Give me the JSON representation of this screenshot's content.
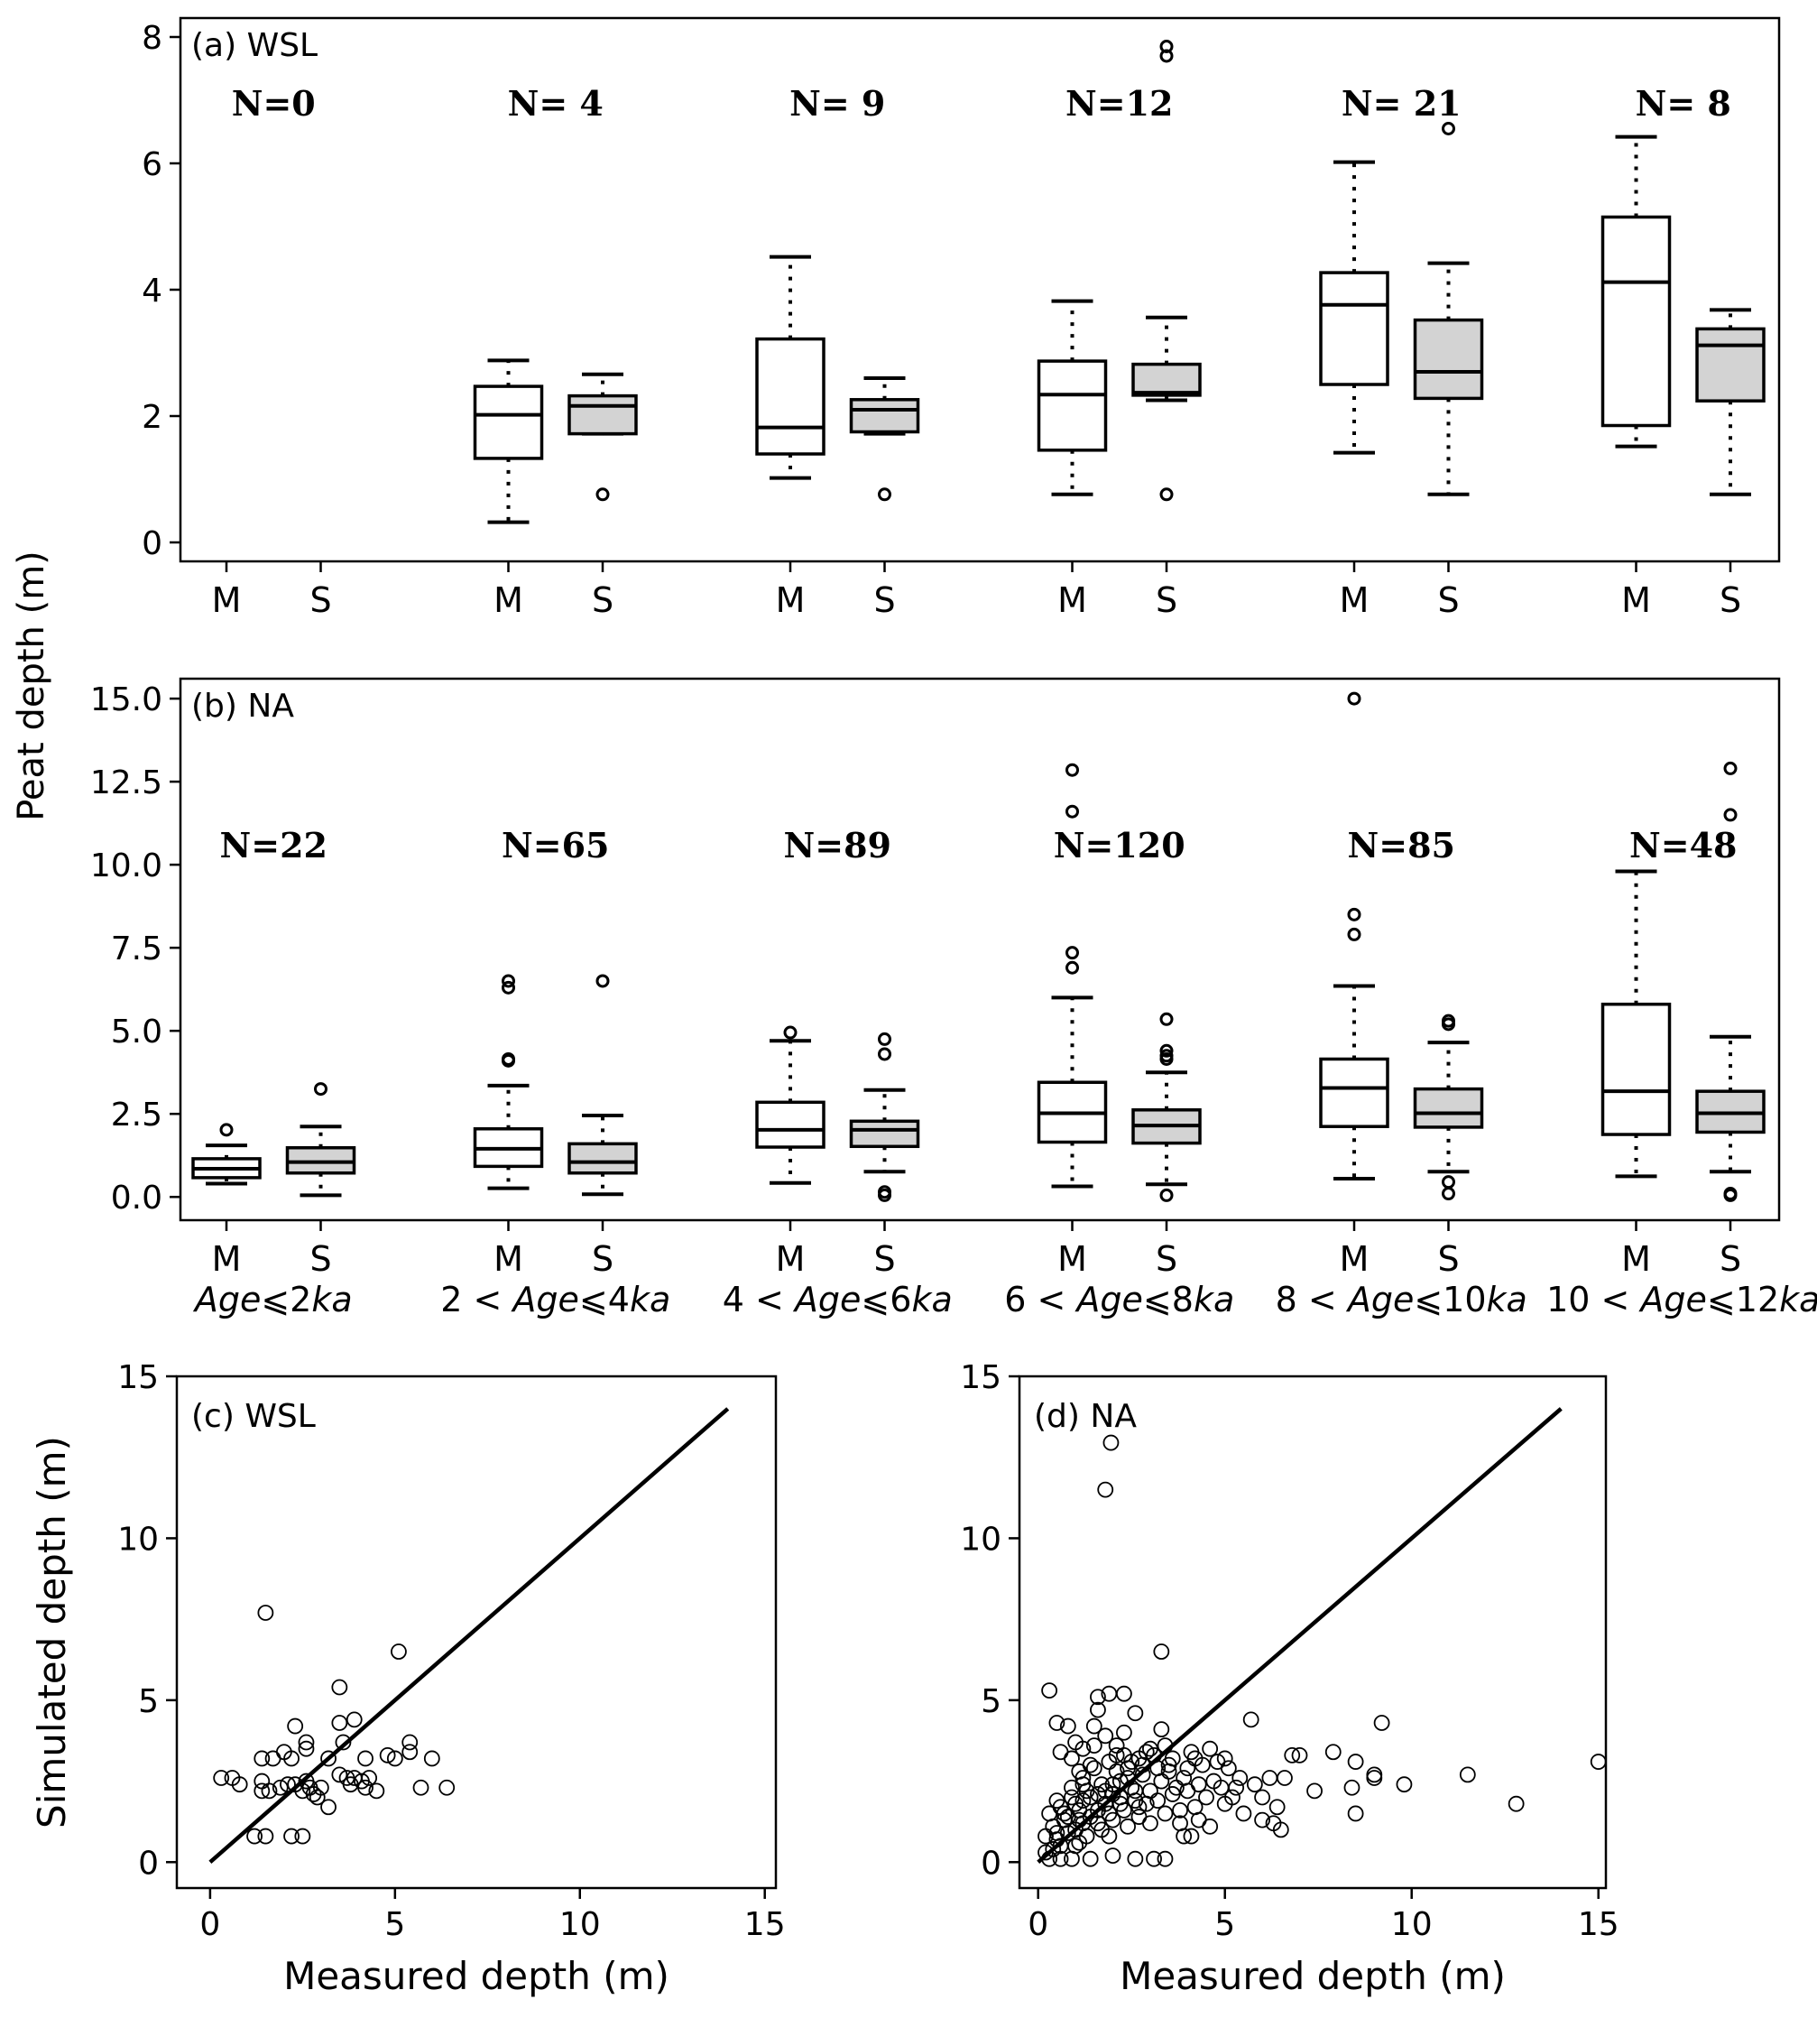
{
  "figure": {
    "ylabel_shared": "Peat depth (m)"
  },
  "chart_data": [
    {
      "type": "box",
      "panel_label": "(a) WSL",
      "ylim": [
        -0.3,
        8.3
      ],
      "yticks": [
        "0",
        "2",
        "4",
        "6",
        "8"
      ],
      "ytick_values": [
        0,
        2,
        4,
        6,
        8
      ],
      "box_labels": [
        "M",
        "S"
      ],
      "groups": [
        {
          "n_label": "N=0",
          "boxes": []
        },
        {
          "n_label": "N= 4",
          "boxes": [
            {
              "label": "M",
              "whislo": 0.32,
              "q1": 1.33,
              "med": 2.02,
              "q3": 2.47,
              "whishi": 2.88,
              "fliers": []
            },
            {
              "label": "S",
              "whislo": 1.72,
              "q1": 1.72,
              "med": 2.16,
              "q3": 2.32,
              "whishi": 2.66,
              "fliers": [
                0.76
              ]
            }
          ]
        },
        {
          "n_label": "N= 9",
          "boxes": [
            {
              "label": "M",
              "whislo": 1.02,
              "q1": 1.4,
              "med": 1.82,
              "q3": 3.22,
              "whishi": 4.52,
              "fliers": []
            },
            {
              "label": "S",
              "whislo": 1.72,
              "q1": 1.75,
              "med": 2.1,
              "q3": 2.26,
              "whishi": 2.6,
              "fliers": [
                0.76
              ]
            }
          ]
        },
        {
          "n_label": "N=12",
          "boxes": [
            {
              "label": "M",
              "whislo": 0.76,
              "q1": 1.46,
              "med": 2.34,
              "q3": 2.87,
              "whishi": 3.82,
              "fliers": []
            },
            {
              "label": "S",
              "whislo": 2.25,
              "q1": 2.33,
              "med": 2.37,
              "q3": 2.82,
              "whishi": 3.56,
              "fliers": [
                0.76,
                7.7,
                7.85
              ]
            }
          ]
        },
        {
          "n_label": "N= 21",
          "boxes": [
            {
              "label": "M",
              "whislo": 1.42,
              "q1": 2.5,
              "med": 3.76,
              "q3": 4.27,
              "whishi": 6.02,
              "fliers": []
            },
            {
              "label": "S",
              "whislo": 0.76,
              "q1": 2.28,
              "med": 2.7,
              "q3": 3.52,
              "whishi": 4.42,
              "fliers": [
                6.55
              ]
            }
          ]
        },
        {
          "n_label": "N= 8",
          "boxes": [
            {
              "label": "M",
              "whislo": 1.52,
              "q1": 1.85,
              "med": 4.12,
              "q3": 5.15,
              "whishi": 6.42,
              "fliers": []
            },
            {
              "label": "S",
              "whislo": 0.76,
              "q1": 2.24,
              "med": 3.12,
              "q3": 3.38,
              "whishi": 3.68,
              "fliers": []
            }
          ]
        }
      ]
    },
    {
      "type": "box",
      "panel_label": "(b) NA",
      "ylim": [
        -0.7,
        15.6
      ],
      "yticks": [
        "0.0",
        "2.5",
        "5.0",
        "7.5",
        "10.0",
        "12.5",
        "15.0"
      ],
      "ytick_values": [
        0,
        2.5,
        5,
        7.5,
        10,
        12.5,
        15
      ],
      "box_labels": [
        "M",
        "S"
      ],
      "group_labels": [
        "Age⩽2ka",
        "2 < Age⩽4ka",
        "4 < Age⩽6ka",
        "6 < Age⩽8ka",
        "8 < Age⩽10ka",
        "10 < Age⩽12ka"
      ],
      "groups": [
        {
          "n_label": "N=22",
          "boxes": [
            {
              "label": "M",
              "whislo": 0.4,
              "q1": 0.58,
              "med": 0.85,
              "q3": 1.15,
              "whishi": 1.55,
              "fliers": [
                2.02
              ]
            },
            {
              "label": "S",
              "whislo": 0.05,
              "q1": 0.72,
              "med": 1.05,
              "q3": 1.48,
              "whishi": 2.12,
              "fliers": [
                3.25
              ]
            }
          ]
        },
        {
          "n_label": "N=65",
          "boxes": [
            {
              "label": "M",
              "whislo": 0.26,
              "q1": 0.92,
              "med": 1.45,
              "q3": 2.05,
              "whishi": 3.35,
              "fliers": [
                4.1,
                4.15,
                6.3,
                6.5
              ]
            },
            {
              "label": "S",
              "whislo": 0.08,
              "q1": 0.72,
              "med": 1.05,
              "q3": 1.6,
              "whishi": 2.45,
              "fliers": [
                6.5
              ]
            }
          ]
        },
        {
          "n_label": "N=89",
          "boxes": [
            {
              "label": "M",
              "whislo": 0.42,
              "q1": 1.5,
              "med": 2.02,
              "q3": 2.85,
              "whishi": 4.7,
              "fliers": [
                4.95
              ]
            },
            {
              "label": "S",
              "whislo": 0.76,
              "q1": 1.52,
              "med": 2.02,
              "q3": 2.28,
              "whishi": 3.22,
              "fliers": [
                0.05,
                0.15,
                4.3,
                4.75
              ]
            }
          ]
        },
        {
          "n_label": "N=120",
          "boxes": [
            {
              "label": "M",
              "whislo": 0.32,
              "q1": 1.65,
              "med": 2.52,
              "q3": 3.45,
              "whishi": 6.0,
              "fliers": [
                6.9,
                7.35,
                11.6,
                12.85
              ]
            },
            {
              "label": "S",
              "whislo": 0.38,
              "q1": 1.62,
              "med": 2.15,
              "q3": 2.62,
              "whishi": 3.75,
              "fliers": [
                0.05,
                4.15,
                4.25,
                4.4,
                5.35
              ]
            }
          ]
        },
        {
          "n_label": "N=85",
          "boxes": [
            {
              "label": "M",
              "whislo": 0.55,
              "q1": 2.12,
              "med": 3.28,
              "q3": 4.15,
              "whishi": 6.35,
              "fliers": [
                7.9,
                8.5,
                15.0
              ]
            },
            {
              "label": "S",
              "whislo": 0.76,
              "q1": 2.1,
              "med": 2.52,
              "q3": 3.25,
              "whishi": 4.65,
              "fliers": [
                0.1,
                0.45,
                5.2,
                5.3
              ]
            }
          ]
        },
        {
          "n_label": "N=48",
          "boxes": [
            {
              "label": "M",
              "whislo": 0.62,
              "q1": 1.88,
              "med": 3.18,
              "q3": 5.8,
              "whishi": 9.8,
              "fliers": []
            },
            {
              "label": "S",
              "whislo": 0.76,
              "q1": 1.95,
              "med": 2.52,
              "q3": 3.18,
              "whishi": 4.82,
              "fliers": [
                0.05,
                0.1,
                11.5,
                12.9
              ]
            }
          ]
        }
      ]
    },
    {
      "type": "scatter",
      "panel_label": "(c) WSL",
      "xlabel": "Measured depth (m)",
      "ylabel": "Simulated depth (m)",
      "xlim": [
        -0.9,
        15.3
      ],
      "ylim": [
        -0.8,
        15.0
      ],
      "xticks": [
        "0",
        "5",
        "10",
        "15"
      ],
      "xtick_values": [
        0,
        5,
        10,
        15
      ],
      "yticks": [
        "0",
        "5",
        "10",
        "15"
      ],
      "ytick_values": [
        0,
        5,
        10,
        15
      ],
      "line": {
        "x": [
          0,
          14
        ],
        "y": [
          0,
          14
        ]
      },
      "points": [
        [
          1.5,
          7.7
        ],
        [
          5.1,
          6.5
        ],
        [
          3.5,
          5.4
        ],
        [
          2.3,
          4.2
        ],
        [
          3.5,
          4.3
        ],
        [
          3.9,
          4.4
        ],
        [
          2.6,
          3.7
        ],
        [
          2.6,
          3.5
        ],
        [
          3.6,
          3.7
        ],
        [
          5.4,
          3.7
        ],
        [
          4.8,
          3.3
        ],
        [
          5,
          3.2
        ],
        [
          5.4,
          3.4
        ],
        [
          6.0,
          3.2
        ],
        [
          1.4,
          3.2
        ],
        [
          1.7,
          3.2
        ],
        [
          2.0,
          3.4
        ],
        [
          2.2,
          3.2
        ],
        [
          3.2,
          3.2
        ],
        [
          4.2,
          3.2
        ],
        [
          0.3,
          2.6
        ],
        [
          0.6,
          2.6
        ],
        [
          0.8,
          2.4
        ],
        [
          1.4,
          2.5
        ],
        [
          1.4,
          2.2
        ],
        [
          1.6,
          2.2
        ],
        [
          1.9,
          2.3
        ],
        [
          2.3,
          2.4
        ],
        [
          2.5,
          2.2
        ],
        [
          2.7,
          2.3
        ],
        [
          2.8,
          2.1
        ],
        [
          2.9,
          2.0
        ],
        [
          3.0,
          2.3
        ],
        [
          3.5,
          2.7
        ],
        [
          3.7,
          2.6
        ],
        [
          3.9,
          2.6
        ],
        [
          4.1,
          2.5
        ],
        [
          4.3,
          2.6
        ],
        [
          4.2,
          2.3
        ],
        [
          4.5,
          2.2
        ],
        [
          5.7,
          2.3
        ],
        [
          6.4,
          2.3
        ],
        [
          3.2,
          1.7
        ],
        [
          1.2,
          0.8
        ],
        [
          1.5,
          0.8
        ],
        [
          2.2,
          0.8
        ],
        [
          2.5,
          0.8
        ],
        [
          2.1,
          2.4
        ],
        [
          2.6,
          2.5
        ],
        [
          3.8,
          2.4
        ]
      ]
    },
    {
      "type": "scatter",
      "panel_label": "(d) NA",
      "xlabel": "Measured depth (m)",
      "ylabel": "",
      "xlim": [
        -0.5,
        15.2
      ],
      "ylim": [
        -0.8,
        15.0
      ],
      "xticks": [
        "0",
        "5",
        "10",
        "15"
      ],
      "xtick_values": [
        0,
        5,
        10,
        15
      ],
      "yticks": [
        "0",
        "5",
        "10",
        "15"
      ],
      "ytick_values": [
        0,
        5,
        10,
        15
      ],
      "line": {
        "x": [
          0,
          14
        ],
        "y": [
          0,
          14
        ]
      },
      "points": [
        [
          1.95,
          12.95
        ],
        [
          1.8,
          11.5
        ],
        [
          3.3,
          6.5
        ],
        [
          0.3,
          5.3
        ],
        [
          1.6,
          5.1
        ],
        [
          1.9,
          5.2
        ],
        [
          2.3,
          5.2
        ],
        [
          1.6,
          4.7
        ],
        [
          2.6,
          4.6
        ],
        [
          0.5,
          4.3
        ],
        [
          0.8,
          4.2
        ],
        [
          1.5,
          4.2
        ],
        [
          2.3,
          4.0
        ],
        [
          3.3,
          4.1
        ],
        [
          5.7,
          4.4
        ],
        [
          9.2,
          4.3
        ],
        [
          1.0,
          3.7
        ],
        [
          1.2,
          3.5
        ],
        [
          2.1,
          3.6
        ],
        [
          0.6,
          3.4
        ],
        [
          0.9,
          3.2
        ],
        [
          4.2,
          3.2
        ],
        [
          6.8,
          3.3
        ],
        [
          7.0,
          3.3
        ],
        [
          7.9,
          3.4
        ],
        [
          8.5,
          3.1
        ],
        [
          15.0,
          3.1
        ],
        [
          6.2,
          2.6
        ],
        [
          6.6,
          2.6
        ],
        [
          9.0,
          2.6
        ],
        [
          9.0,
          2.7
        ],
        [
          11.5,
          2.7
        ],
        [
          8.4,
          2.3
        ],
        [
          9.8,
          2.4
        ],
        [
          7.4,
          2.2
        ],
        [
          6.0,
          1.3
        ],
        [
          6.3,
          1.2
        ],
        [
          6.5,
          1.0
        ],
        [
          6.4,
          1.7
        ],
        [
          8.5,
          1.5
        ],
        [
          12.8,
          1.8
        ],
        [
          4.6,
          1.1
        ],
        [
          5.5,
          1.5
        ],
        [
          0.2,
          0.8
        ],
        [
          0.5,
          0.7
        ],
        [
          0.9,
          0.1
        ],
        [
          1.4,
          0.1
        ],
        [
          2.0,
          0.2
        ],
        [
          2.6,
          0.1
        ],
        [
          3.1,
          0.1
        ],
        [
          3.4,
          0.1
        ],
        [
          0.3,
          0.1
        ],
        [
          0.6,
          0.1
        ],
        [
          1.1,
          0.6
        ],
        [
          3.9,
          0.8
        ],
        [
          4.1,
          0.8
        ],
        [
          3.8,
          1.2
        ],
        [
          4.3,
          1.3
        ],
        [
          5.0,
          1.8
        ],
        [
          5.3,
          2.3
        ],
        [
          4.7,
          2.5
        ],
        [
          5.1,
          2.9
        ],
        [
          4.8,
          3.1
        ],
        [
          4.0,
          2.9
        ],
        [
          4.4,
          3.0
        ],
        [
          3.7,
          2.3
        ],
        [
          3.5,
          2.8
        ],
        [
          3.1,
          3.3
        ],
        [
          2.7,
          3.2
        ],
        [
          2.4,
          2.9
        ],
        [
          2.2,
          2.5
        ],
        [
          2.0,
          2.1
        ],
        [
          1.8,
          1.8
        ],
        [
          1.6,
          1.6
        ],
        [
          1.4,
          1.4
        ],
        [
          1.2,
          1.2
        ],
        [
          1.0,
          1.0
        ],
        [
          0.8,
          0.9
        ],
        [
          0.6,
          0.5
        ],
        [
          0.4,
          0.4
        ],
        [
          0.7,
          1.5
        ],
        [
          1.0,
          1.8
        ],
        [
          1.3,
          2.2
        ],
        [
          1.7,
          2.4
        ],
        [
          2.1,
          2.8
        ],
        [
          2.5,
          3.1
        ],
        [
          2.9,
          3.4
        ],
        [
          3.4,
          3.6
        ],
        [
          0.5,
          1.9
        ],
        [
          0.9,
          2.3
        ],
        [
          1.2,
          2.6
        ],
        [
          1.5,
          2.9
        ],
        [
          1.9,
          3.1
        ],
        [
          2.3,
          3.3
        ],
        [
          0.4,
          1.1
        ],
        [
          0.7,
          1.3
        ],
        [
          1.1,
          1.6
        ],
        [
          1.4,
          2.0
        ],
        [
          1.8,
          2.2
        ],
        [
          2.2,
          2.0
        ],
        [
          2.6,
          1.9
        ],
        [
          3.0,
          2.2
        ],
        [
          3.3,
          2.5
        ],
        [
          3.6,
          2.1
        ],
        [
          4.0,
          2.2
        ],
        [
          4.5,
          2.0
        ],
        [
          4.2,
          1.7
        ],
        [
          3.8,
          1.6
        ],
        [
          3.4,
          1.5
        ],
        [
          3.0,
          1.2
        ],
        [
          2.7,
          1.4
        ],
        [
          2.4,
          1.1
        ],
        [
          2.0,
          1.3
        ],
        [
          1.7,
          1.0
        ],
        [
          1.3,
          0.8
        ],
        [
          1.0,
          0.5
        ],
        [
          0.8,
          1.4
        ],
        [
          1.2,
          1.9
        ],
        [
          1.6,
          2.1
        ],
        [
          2.0,
          2.4
        ],
        [
          2.4,
          2.6
        ],
        [
          2.8,
          2.7
        ],
        [
          3.2,
          2.9
        ],
        [
          3.6,
          3.2
        ],
        [
          4.1,
          3.4
        ],
        [
          4.6,
          3.5
        ],
        [
          5.0,
          3.2
        ],
        [
          5.4,
          2.6
        ],
        [
          5.8,
          2.4
        ],
        [
          6.0,
          2.0
        ],
        [
          1.5,
          3.6
        ],
        [
          1.8,
          3.9
        ],
        [
          2.1,
          3.3
        ],
        [
          2.5,
          2.3
        ],
        [
          2.9,
          1.8
        ],
        [
          3.2,
          1.9
        ],
        [
          1.1,
          2.8
        ],
        [
          0.9,
          2.0
        ],
        [
          0.6,
          1.7
        ],
        [
          0.3,
          1.5
        ],
        [
          0.2,
          0.3
        ],
        [
          1.9,
          0.8
        ],
        [
          2.3,
          1.6
        ],
        [
          2.6,
          2.2
        ],
        [
          3.9,
          2.6
        ],
        [
          4.3,
          2.4
        ],
        [
          4.9,
          2.3
        ],
        [
          5.2,
          2.0
        ],
        [
          2.8,
          3.0
        ],
        [
          1.4,
          3.0
        ],
        [
          1.2,
          2.4
        ],
        [
          2.2,
          1.8
        ],
        [
          1.6,
          1.2
        ],
        [
          0.5,
          0.9
        ],
        [
          3.0,
          3.5
        ],
        [
          3.5,
          3.0
        ],
        [
          2.7,
          1.7
        ],
        [
          1.9,
          1.5
        ],
        [
          1.1,
          1.3
        ]
      ]
    }
  ]
}
